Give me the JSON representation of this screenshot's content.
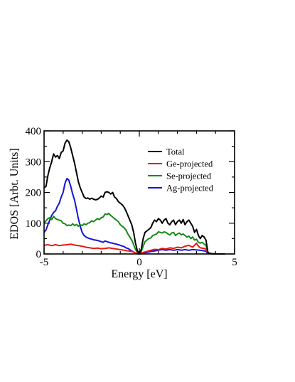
{
  "chart_data": {
    "type": "line",
    "xlabel": "Energy [eV]",
    "ylabel": "EDOS [Arbt. Units]",
    "xlim": [
      -5,
      5
    ],
    "ylim": [
      0,
      400
    ],
    "xticks": [
      -5,
      0,
      5
    ],
    "yticks": [
      0,
      100,
      200,
      300,
      400
    ],
    "grid": false,
    "legend_position": "top-right",
    "series": [
      {
        "name": "Total",
        "color": "#000000",
        "points": [
          [
            -5.0,
            215
          ],
          [
            -4.9,
            220
          ],
          [
            -4.8,
            255
          ],
          [
            -4.7,
            280
          ],
          [
            -4.6,
            300
          ],
          [
            -4.5,
            325
          ],
          [
            -4.4,
            315
          ],
          [
            -4.3,
            320
          ],
          [
            -4.2,
            310
          ],
          [
            -4.1,
            330
          ],
          [
            -4.0,
            335
          ],
          [
            -3.9,
            360
          ],
          [
            -3.8,
            370
          ],
          [
            -3.7,
            365
          ],
          [
            -3.6,
            345
          ],
          [
            -3.5,
            320
          ],
          [
            -3.4,
            295
          ],
          [
            -3.3,
            265
          ],
          [
            -3.2,
            235
          ],
          [
            -3.1,
            215
          ],
          [
            -3.0,
            200
          ],
          [
            -2.9,
            185
          ],
          [
            -2.8,
            180
          ],
          [
            -2.7,
            182
          ],
          [
            -2.6,
            178
          ],
          [
            -2.5,
            181
          ],
          [
            -2.4,
            178
          ],
          [
            -2.3,
            176
          ],
          [
            -2.2,
            177
          ],
          [
            -2.1,
            182
          ],
          [
            -2.0,
            188
          ],
          [
            -1.9,
            185
          ],
          [
            -1.8,
            200
          ],
          [
            -1.7,
            202
          ],
          [
            -1.6,
            200
          ],
          [
            -1.5,
            195
          ],
          [
            -1.4,
            200
          ],
          [
            -1.3,
            185
          ],
          [
            -1.2,
            180
          ],
          [
            -1.1,
            170
          ],
          [
            -1.0,
            165
          ],
          [
            -0.9,
            160
          ],
          [
            -0.8,
            152
          ],
          [
            -0.7,
            140
          ],
          [
            -0.6,
            125
          ],
          [
            -0.5,
            110
          ],
          [
            -0.4,
            95
          ],
          [
            -0.3,
            70
          ],
          [
            -0.2,
            35
          ],
          [
            -0.1,
            10
          ],
          [
            0.0,
            2
          ],
          [
            0.1,
            15
          ],
          [
            0.2,
            50
          ],
          [
            0.3,
            70
          ],
          [
            0.4,
            75
          ],
          [
            0.5,
            80
          ],
          [
            0.6,
            85
          ],
          [
            0.7,
            100
          ],
          [
            0.8,
            110
          ],
          [
            0.9,
            105
          ],
          [
            1.0,
            115
          ],
          [
            1.1,
            110
          ],
          [
            1.2,
            100
          ],
          [
            1.3,
            110
          ],
          [
            1.4,
            115
          ],
          [
            1.5,
            100
          ],
          [
            1.6,
            95
          ],
          [
            1.7,
            105
          ],
          [
            1.8,
            110
          ],
          [
            1.9,
            95
          ],
          [
            2.0,
            105
          ],
          [
            2.1,
            110
          ],
          [
            2.2,
            100
          ],
          [
            2.3,
            112
          ],
          [
            2.4,
            95
          ],
          [
            2.5,
            105
          ],
          [
            2.6,
            110
          ],
          [
            2.7,
            100
          ],
          [
            2.8,
            90
          ],
          [
            2.9,
            70
          ],
          [
            3.0,
            80
          ],
          [
            3.1,
            60
          ],
          [
            3.2,
            50
          ],
          [
            3.3,
            60
          ],
          [
            3.4,
            55
          ],
          [
            3.5,
            45
          ],
          [
            3.6,
            5
          ],
          [
            3.7,
            2
          ],
          [
            3.8,
            1
          ],
          [
            4.0,
            0
          ],
          [
            4.5,
            0
          ]
        ]
      },
      {
        "name": "Ge-projected",
        "color": "#e8190f",
        "points": [
          [
            -5.0,
            28
          ],
          [
            -4.8,
            30
          ],
          [
            -4.6,
            27
          ],
          [
            -4.4,
            30
          ],
          [
            -4.2,
            27
          ],
          [
            -4.0,
            29
          ],
          [
            -3.8,
            30
          ],
          [
            -3.6,
            32
          ],
          [
            -3.4,
            29
          ],
          [
            -3.2,
            27
          ],
          [
            -3.0,
            25
          ],
          [
            -2.8,
            22
          ],
          [
            -2.6,
            20
          ],
          [
            -2.4,
            18
          ],
          [
            -2.2,
            19
          ],
          [
            -2.0,
            17
          ],
          [
            -1.8,
            18
          ],
          [
            -1.6,
            20
          ],
          [
            -1.4,
            18
          ],
          [
            -1.2,
            16
          ],
          [
            -1.0,
            14
          ],
          [
            -0.8,
            12
          ],
          [
            -0.6,
            10
          ],
          [
            -0.4,
            8
          ],
          [
            -0.2,
            4
          ],
          [
            0.0,
            1
          ],
          [
            0.2,
            5
          ],
          [
            0.4,
            8
          ],
          [
            0.6,
            12
          ],
          [
            0.8,
            15
          ],
          [
            1.0,
            14
          ],
          [
            1.2,
            18
          ],
          [
            1.4,
            16
          ],
          [
            1.6,
            20
          ],
          [
            1.8,
            18
          ],
          [
            2.0,
            22
          ],
          [
            2.2,
            20
          ],
          [
            2.4,
            25
          ],
          [
            2.6,
            28
          ],
          [
            2.8,
            22
          ],
          [
            3.0,
            35
          ],
          [
            3.1,
            25
          ],
          [
            3.2,
            20
          ],
          [
            3.4,
            18
          ],
          [
            3.5,
            15
          ],
          [
            3.6,
            3
          ],
          [
            3.8,
            1
          ],
          [
            4.0,
            0
          ],
          [
            4.5,
            0
          ]
        ]
      },
      {
        "name": "Se-projected",
        "color": "#138a18",
        "points": [
          [
            -5.0,
            100
          ],
          [
            -4.9,
            108
          ],
          [
            -4.8,
            115
          ],
          [
            -4.7,
            118
          ],
          [
            -4.6,
            112
          ],
          [
            -4.5,
            122
          ],
          [
            -4.4,
            115
          ],
          [
            -4.3,
            112
          ],
          [
            -4.2,
            110
          ],
          [
            -4.1,
            108
          ],
          [
            -4.0,
            100
          ],
          [
            -3.9,
            98
          ],
          [
            -3.8,
            92
          ],
          [
            -3.7,
            94
          ],
          [
            -3.6,
            92
          ],
          [
            -3.5,
            98
          ],
          [
            -3.4,
            92
          ],
          [
            -3.3,
            96
          ],
          [
            -3.2,
            90
          ],
          [
            -3.1,
            95
          ],
          [
            -3.0,
            92
          ],
          [
            -2.9,
            98
          ],
          [
            -2.8,
            95
          ],
          [
            -2.7,
            100
          ],
          [
            -2.6,
            102
          ],
          [
            -2.5,
            108
          ],
          [
            -2.4,
            105
          ],
          [
            -2.3,
            110
          ],
          [
            -2.2,
            115
          ],
          [
            -2.1,
            112
          ],
          [
            -2.0,
            118
          ],
          [
            -1.9,
            120
          ],
          [
            -1.8,
            130
          ],
          [
            -1.7,
            128
          ],
          [
            -1.6,
            132
          ],
          [
            -1.5,
            125
          ],
          [
            -1.4,
            120
          ],
          [
            -1.3,
            115
          ],
          [
            -1.2,
            110
          ],
          [
            -1.1,
            105
          ],
          [
            -1.0,
            95
          ],
          [
            -0.9,
            90
          ],
          [
            -0.8,
            85
          ],
          [
            -0.7,
            78
          ],
          [
            -0.6,
            65
          ],
          [
            -0.5,
            55
          ],
          [
            -0.4,
            45
          ],
          [
            -0.3,
            30
          ],
          [
            -0.2,
            15
          ],
          [
            -0.1,
            5
          ],
          [
            0.0,
            1
          ],
          [
            0.1,
            8
          ],
          [
            0.2,
            25
          ],
          [
            0.3,
            40
          ],
          [
            0.4,
            45
          ],
          [
            0.5,
            50
          ],
          [
            0.6,
            52
          ],
          [
            0.7,
            60
          ],
          [
            0.8,
            62
          ],
          [
            0.9,
            65
          ],
          [
            1.0,
            72
          ],
          [
            1.1,
            70
          ],
          [
            1.2,
            68
          ],
          [
            1.3,
            72
          ],
          [
            1.4,
            70
          ],
          [
            1.5,
            65
          ],
          [
            1.6,
            62
          ],
          [
            1.7,
            68
          ],
          [
            1.8,
            70
          ],
          [
            1.9,
            60
          ],
          [
            2.0,
            65
          ],
          [
            2.1,
            68
          ],
          [
            2.2,
            62
          ],
          [
            2.3,
            65
          ],
          [
            2.4,
            60
          ],
          [
            2.5,
            55
          ],
          [
            2.6,
            58
          ],
          [
            2.7,
            50
          ],
          [
            2.8,
            55
          ],
          [
            2.9,
            45
          ],
          [
            3.0,
            48
          ],
          [
            3.1,
            38
          ],
          [
            3.2,
            35
          ],
          [
            3.3,
            38
          ],
          [
            3.4,
            32
          ],
          [
            3.5,
            28
          ],
          [
            3.6,
            4
          ],
          [
            3.7,
            1
          ],
          [
            4.0,
            0
          ],
          [
            4.5,
            0
          ]
        ]
      },
      {
        "name": "Ag-projected",
        "color": "#1414dc",
        "points": [
          [
            -5.0,
            70
          ],
          [
            -4.9,
            78
          ],
          [
            -4.8,
            95
          ],
          [
            -4.7,
            110
          ],
          [
            -4.6,
            125
          ],
          [
            -4.5,
            135
          ],
          [
            -4.4,
            140
          ],
          [
            -4.3,
            155
          ],
          [
            -4.2,
            165
          ],
          [
            -4.1,
            185
          ],
          [
            -4.0,
            200
          ],
          [
            -3.9,
            230
          ],
          [
            -3.8,
            245
          ],
          [
            -3.7,
            240
          ],
          [
            -3.6,
            220
          ],
          [
            -3.5,
            195
          ],
          [
            -3.4,
            175
          ],
          [
            -3.3,
            145
          ],
          [
            -3.2,
            115
          ],
          [
            -3.1,
            90
          ],
          [
            -3.0,
            70
          ],
          [
            -2.9,
            60
          ],
          [
            -2.8,
            55
          ],
          [
            -2.7,
            52
          ],
          [
            -2.6,
            50
          ],
          [
            -2.5,
            48
          ],
          [
            -2.4,
            46
          ],
          [
            -2.3,
            45
          ],
          [
            -2.2,
            44
          ],
          [
            -2.1,
            42
          ],
          [
            -2.0,
            40
          ],
          [
            -1.9,
            38
          ],
          [
            -1.8,
            42
          ],
          [
            -1.7,
            40
          ],
          [
            -1.6,
            38
          ],
          [
            -1.5,
            36
          ],
          [
            -1.4,
            35
          ],
          [
            -1.3,
            33
          ],
          [
            -1.2,
            32
          ],
          [
            -1.1,
            30
          ],
          [
            -1.0,
            28
          ],
          [
            -0.9,
            26
          ],
          [
            -0.8,
            24
          ],
          [
            -0.7,
            20
          ],
          [
            -0.6,
            18
          ],
          [
            -0.5,
            14
          ],
          [
            -0.4,
            10
          ],
          [
            -0.3,
            6
          ],
          [
            -0.2,
            3
          ],
          [
            -0.1,
            1
          ],
          [
            0.0,
            0
          ],
          [
            0.2,
            2
          ],
          [
            0.4,
            5
          ],
          [
            0.6,
            8
          ],
          [
            0.8,
            10
          ],
          [
            1.0,
            12
          ],
          [
            1.2,
            14
          ],
          [
            1.4,
            12
          ],
          [
            1.6,
            14
          ],
          [
            1.8,
            12
          ],
          [
            2.0,
            14
          ],
          [
            2.2,
            12
          ],
          [
            2.4,
            14
          ],
          [
            2.6,
            12
          ],
          [
            2.8,
            14
          ],
          [
            3.0,
            13
          ],
          [
            3.2,
            12
          ],
          [
            3.4,
            10
          ],
          [
            3.5,
            8
          ],
          [
            3.6,
            2
          ],
          [
            3.8,
            0
          ],
          [
            4.5,
            0
          ]
        ]
      }
    ]
  }
}
